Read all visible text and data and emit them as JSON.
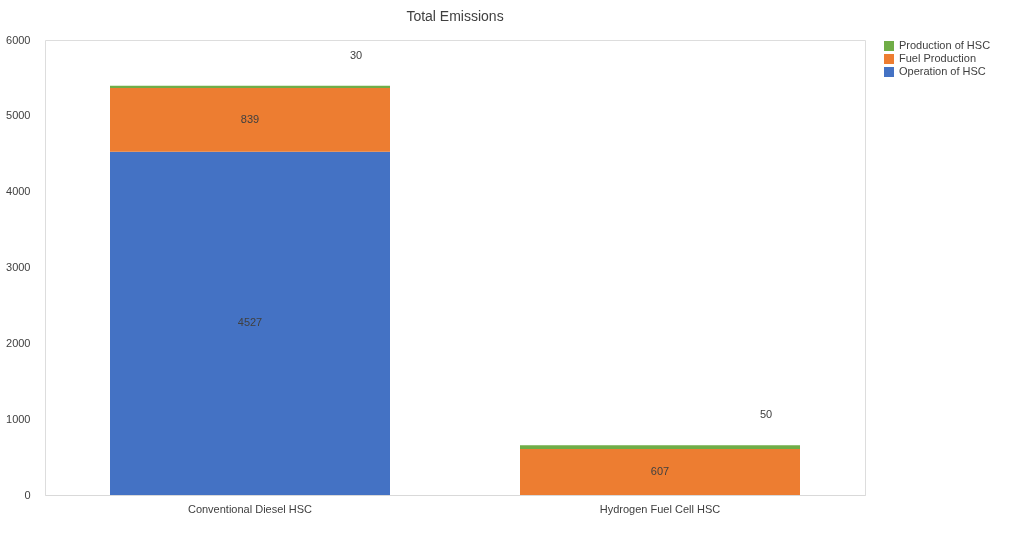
{
  "chart_data": {
    "type": "bar",
    "title": "Total Emissions",
    "stacked": true,
    "categories": [
      "Conventional Diesel HSC",
      "Hydrogen Fuel Cell HSC"
    ],
    "series": [
      {
        "name": "Operation of HSC",
        "color": "#4472c4",
        "values": [
          4527,
          0
        ],
        "value_labels": [
          "4527",
          null
        ]
      },
      {
        "name": "Fuel Production",
        "color": "#ed7d31",
        "values": [
          839,
          607
        ],
        "value_labels": [
          "839",
          "607"
        ]
      },
      {
        "name": "Production of HSC",
        "color": "#70ad47",
        "values": [
          30,
          50
        ],
        "value_labels": [
          "30",
          "50"
        ]
      }
    ],
    "ylim": [
      0,
      6000
    ],
    "yticks": [
      0,
      1000,
      2000,
      3000,
      4000,
      5000,
      6000
    ],
    "grid": false,
    "legend": "right"
  }
}
